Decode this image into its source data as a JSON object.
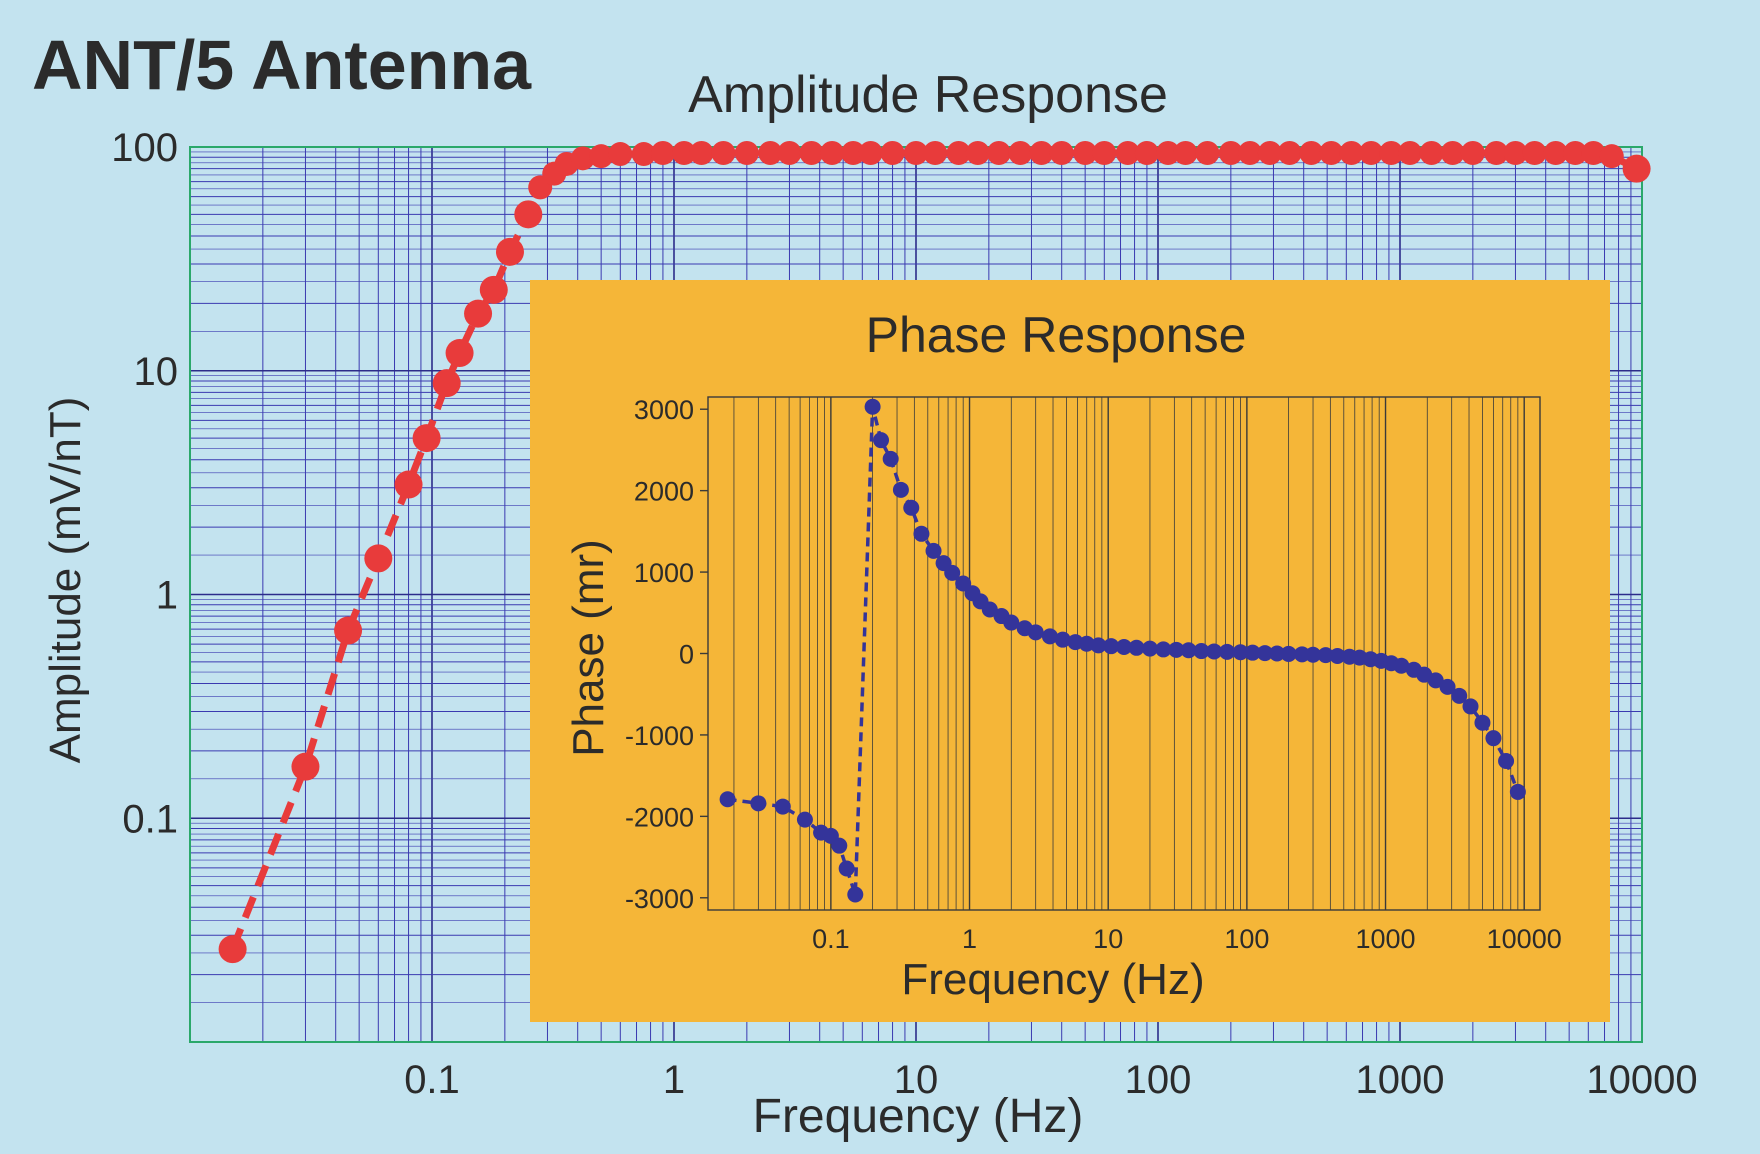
{
  "page": {
    "title": "ANT/5 Antenna"
  },
  "colors": {
    "background": "#c3e3ef",
    "major_grid": "#2c2c8a",
    "minor_grid": "#3a3ab0",
    "frame": "#2aa86a",
    "amplitude_series": "#e83b3b",
    "inset_background": "#f5b638",
    "phase_series": "#34349a",
    "text": "#2b2b2b"
  },
  "chart_data": [
    {
      "type": "scatter",
      "title": "Amplitude Response",
      "xlabel": "Frequency  (Hz)",
      "ylabel": "Amplitude  (mV/nT)",
      "x_scale": "log",
      "y_scale": "log",
      "xlim": [
        0.01,
        10000
      ],
      "ylim": [
        0.01,
        100
      ],
      "grid": true,
      "x_ticks": [
        {
          "value": 0.1,
          "label": "0.1"
        },
        {
          "value": 1,
          "label": "1"
        },
        {
          "value": 10,
          "label": "10"
        },
        {
          "value": 100,
          "label": "100"
        },
        {
          "value": 1000,
          "label": "1000"
        },
        {
          "value": 10000,
          "label": "10000"
        }
      ],
      "y_ticks": [
        {
          "value": 0.1,
          "label": "0.1"
        },
        {
          "value": 1,
          "label": "1"
        },
        {
          "value": 10,
          "label": "10"
        },
        {
          "value": 100,
          "label": "100"
        }
      ],
      "x": [
        0.015,
        0.03,
        0.045,
        0.06,
        0.08,
        0.095,
        0.115,
        0.13,
        0.155,
        0.18,
        0.21,
        0.25,
        0.28,
        0.32,
        0.36,
        0.42,
        0.5,
        0.6,
        0.75,
        0.9,
        1.1,
        1.3,
        1.6,
        2,
        2.5,
        3,
        3.7,
        4.5,
        5.5,
        6.5,
        8,
        10,
        12,
        15,
        18,
        22,
        27,
        33,
        40,
        50,
        60,
        75,
        90,
        110,
        130,
        160,
        200,
        240,
        290,
        350,
        430,
        520,
        630,
        760,
        920,
        1100,
        1350,
        1650,
        2000,
        2500,
        3000,
        3600,
        4400,
        5300,
        6300,
        7500,
        9500
      ],
      "y": [
        0.026,
        0.17,
        0.69,
        1.45,
        3.1,
        5.0,
        8.8,
        12.0,
        18.0,
        23.0,
        34.0,
        50.0,
        66.0,
        76.0,
        84.0,
        89.0,
        91.0,
        93.0,
        93.0,
        94.0,
        94.0,
        94.0,
        94.0,
        94.0,
        94.0,
        94.0,
        94.0,
        94.0,
        94.0,
        94.0,
        94.0,
        94.0,
        94.0,
        94.0,
        94.0,
        94.0,
        94.0,
        94.0,
        94.0,
        94.0,
        94.0,
        94.0,
        94.0,
        94.0,
        94.0,
        94.0,
        94.0,
        94.0,
        94.0,
        94.0,
        94.0,
        94.0,
        94.0,
        94.0,
        94.0,
        94.0,
        94.0,
        94.0,
        94.0,
        94.0,
        94.0,
        94.0,
        94.0,
        94.0,
        94.0,
        91.0,
        80.0
      ]
    },
    {
      "type": "scatter",
      "title": "Phase Response",
      "xlabel": "Frequency  (Hz)",
      "ylabel": "Phase  (mr)",
      "x_scale": "log",
      "y_scale": "linear",
      "xlim": [
        0.013,
        13000
      ],
      "ylim": [
        -3150,
        3150
      ],
      "grid": true,
      "x_ticks": [
        {
          "value": 0.1,
          "label": "0.1"
        },
        {
          "value": 1,
          "label": "1"
        },
        {
          "value": 10,
          "label": "10"
        },
        {
          "value": 100,
          "label": "100"
        },
        {
          "value": 1000,
          "label": "1000"
        },
        {
          "value": 10000,
          "label": "10000"
        }
      ],
      "y_ticks": [
        {
          "value": 3000,
          "label": "3000"
        },
        {
          "value": 2000,
          "label": "2000"
        },
        {
          "value": 1000,
          "label": "1000"
        },
        {
          "value": 0,
          "label": "0"
        },
        {
          "value": -1000,
          "label": "-1000"
        },
        {
          "value": -2000,
          "label": "-2000"
        },
        {
          "value": -3000,
          "label": "-3000"
        }
      ],
      "x": [
        0.018,
        0.03,
        0.045,
        0.065,
        0.085,
        0.1,
        0.115,
        0.13,
        0.15,
        0.2,
        0.23,
        0.27,
        0.32,
        0.38,
        0.45,
        0.55,
        0.65,
        0.75,
        0.9,
        1.05,
        1.2,
        1.4,
        1.7,
        2,
        2.5,
        3,
        3.8,
        4.7,
        5.8,
        7,
        8.5,
        10.5,
        13,
        16,
        20,
        25,
        31,
        38,
        47,
        58,
        72,
        90,
        110,
        135,
        165,
        200,
        250,
        300,
        370,
        450,
        550,
        650,
        780,
        930,
        1100,
        1300,
        1600,
        1900,
        2300,
        2800,
        3400,
        4100,
        5000,
        6000,
        7400,
        9000
      ],
      "y": [
        -1790,
        -1840,
        -1880,
        -2040,
        -2200,
        -2240,
        -2360,
        -2640,
        -2960,
        3030,
        2620,
        2390,
        2010,
        1790,
        1470,
        1260,
        1110,
        990,
        860,
        740,
        640,
        540,
        460,
        380,
        310,
        260,
        210,
        170,
        140,
        120,
        100,
        90,
        80,
        70,
        60,
        50,
        45,
        40,
        30,
        25,
        20,
        15,
        10,
        5,
        0,
        -5,
        -10,
        -15,
        -20,
        -30,
        -40,
        -50,
        -70,
        -90,
        -120,
        -150,
        -200,
        -260,
        -330,
        -410,
        -520,
        -650,
        -850,
        -1040,
        -1320,
        -1700
      ]
    }
  ]
}
